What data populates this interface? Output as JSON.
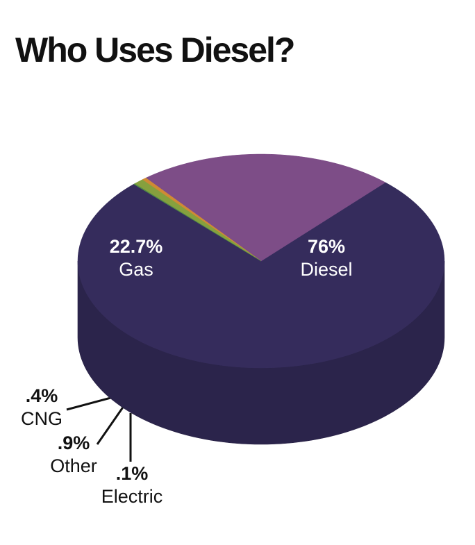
{
  "chart_data": {
    "type": "pie",
    "title": "Who Uses Diesel?",
    "categories": [
      "Diesel",
      "Gas",
      "CNG",
      "Other",
      "Electric"
    ],
    "values": [
      76,
      22.7,
      0.4,
      0.9,
      0.1
    ],
    "value_labels": [
      "76%",
      "22.7%",
      ".4%",
      ".9%",
      ".1%"
    ],
    "colors": [
      "#352c5c",
      "#7d4d87",
      "#d08a34",
      "#86a03e",
      "#4f8a46"
    ]
  }
}
